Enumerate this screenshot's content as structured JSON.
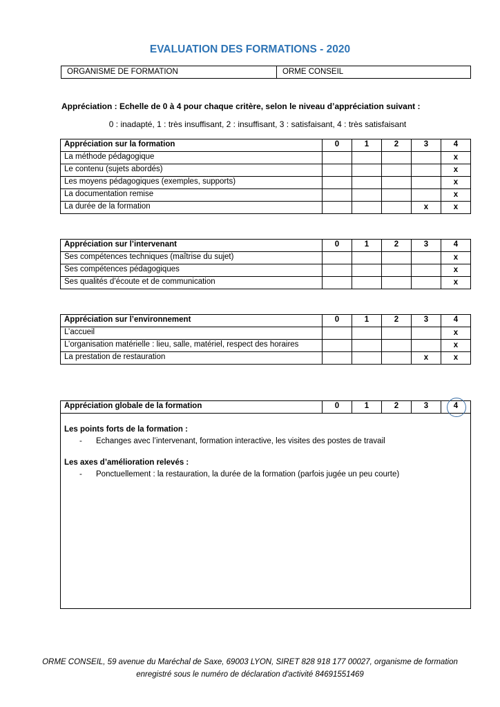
{
  "title": "EVALUATION DES FORMATIONS - 2020",
  "organisme": {
    "label": "ORGANISME DE FORMATION",
    "value": "ORME CONSEIL"
  },
  "appreciation_intro": "Appréciation : Echelle de 0 à 4 pour chaque critère, selon le niveau d’appréciation suivant :",
  "scale_legend": "0 : inadapté, 1 : très insuffisant, 2 : insuffisant, 3 : satisfaisant, 4 : très satisfaisant",
  "scale_headers": [
    "0",
    "1",
    "2",
    "3",
    "4"
  ],
  "mark": "x",
  "tables": [
    {
      "title": "Appréciation sur la formation",
      "rows": [
        {
          "label": "La méthode pédagogique",
          "marks": [
            4
          ]
        },
        {
          "label": "Le contenu (sujets abordés)",
          "marks": [
            4
          ]
        },
        {
          "label": "Les moyens pédagogiques (exemples, supports)",
          "marks": [
            4
          ]
        },
        {
          "label": "La documentation remise",
          "marks": [
            4
          ]
        },
        {
          "label": "La durée de la formation",
          "marks": [
            3,
            4
          ]
        }
      ]
    },
    {
      "title": "Appréciation sur l’intervenant",
      "rows": [
        {
          "label": "Ses compétences techniques (maîtrise du sujet)",
          "marks": [
            4
          ]
        },
        {
          "label": "Ses compétences pédagogiques",
          "marks": [
            4
          ]
        },
        {
          "label": "Ses qualités d’écoute et de communication",
          "marks": [
            4
          ]
        }
      ]
    },
    {
      "title": "Appréciation sur l’environnement",
      "rows": [
        {
          "label": "L’accueil",
          "marks": [
            4
          ]
        },
        {
          "label": "L’organisation matérielle : lieu, salle, matériel, respect des horaires",
          "marks": [
            4
          ]
        },
        {
          "label": "La prestation de restauration",
          "marks": [
            3,
            4
          ]
        }
      ]
    }
  ],
  "global": {
    "title": "Appréciation globale de la formation",
    "selected": 4,
    "strengths_title": "Les points forts de la formation :",
    "strengths": "Echanges avec l’intervenant, formation interactive, les visites des postes de travail",
    "improvements_title": "Les axes d’amélioration relevés :",
    "improvements": "Ponctuellement : la restauration, la durée de la formation (parfois jugée un peu courte)",
    "bullet": "-"
  },
  "footer": {
    "line1": "ORME CONSEIL, 59 avenue du Maréchal de Saxe, 69003 LYON, SIRET 828 918 177 00027, organisme de formation",
    "line2": "enregistré sous le numéro de déclaration d'activité 84691551469"
  }
}
